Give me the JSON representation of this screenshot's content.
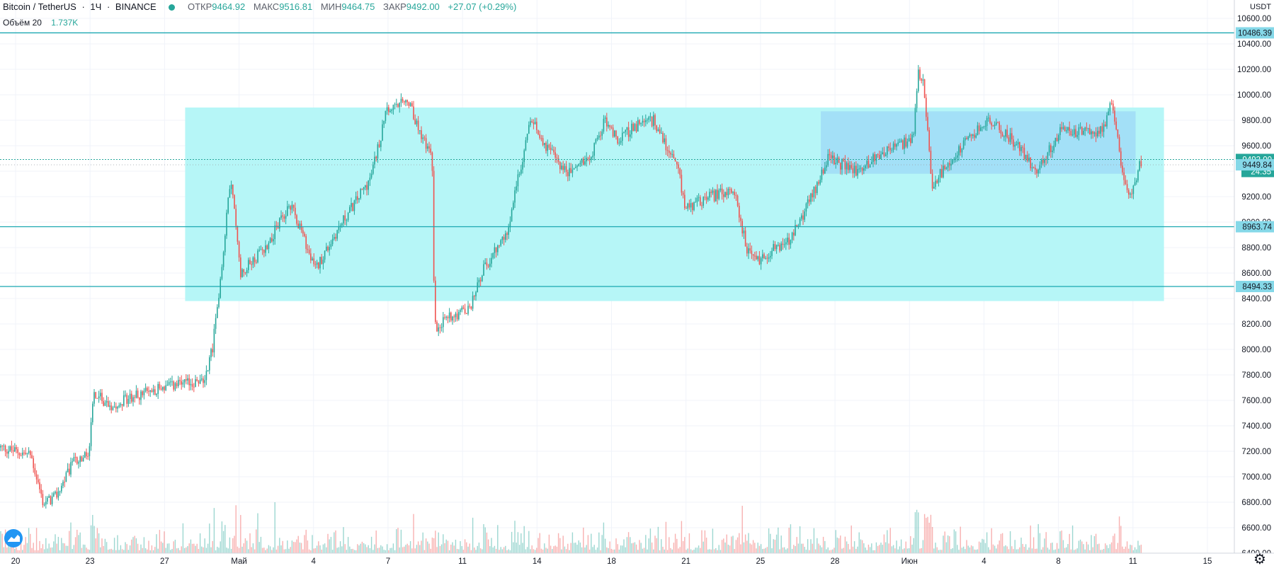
{
  "header": {
    "symbol": "Bitcoin / TetherUS",
    "interval": "1Ч",
    "exchange": "BINANCE",
    "ohlc": {
      "open_label": "ОТКР",
      "open": "9464.92",
      "high_label": "МАКС",
      "high": "9516.81",
      "low_label": "МИН",
      "low": "9464.75",
      "close_label": "ЗАКР",
      "close": "9492.00",
      "change": "+27.07 (+0.29%)"
    },
    "volume_label": "Объём 20",
    "volume_value": "1.737K"
  },
  "price_axis": {
    "currency": "USDT",
    "ticks": [
      "10600.00",
      "10400.00",
      "10200.00",
      "10000.00",
      "9800.00",
      "9600.00",
      "9400.00",
      "9200.00",
      "9000.00",
      "8800.00",
      "8600.00",
      "8400.00",
      "8200.00",
      "8000.00",
      "7800.00",
      "7600.00",
      "7400.00",
      "7200.00",
      "7000.00",
      "6800.00",
      "6600.00",
      "6400.00"
    ],
    "line_labels": [
      "10486.39",
      "8963.74",
      "8494.33"
    ],
    "current_price": "9492.00",
    "countdown": "24:35",
    "marker_price": "9449.84"
  },
  "time_axis": {
    "ticks": [
      "20",
      "23",
      "27",
      "Май",
      "4",
      "7",
      "11",
      "14",
      "18",
      "21",
      "25",
      "28",
      "Июн",
      "4",
      "8",
      "11",
      "15"
    ]
  },
  "colors": {
    "up": "#26a69a",
    "down": "#ef5350",
    "zone_large": "#b2f5f7",
    "zone_small": "#a0dcf7",
    "hline": "#1ba8b1",
    "logo": "#2196f3"
  },
  "icons": {
    "logo": "tradingview-logo-icon",
    "settings": "gear-icon"
  },
  "chart_data": {
    "type": "candlestick",
    "y_min": 6400,
    "y_max": 10700,
    "horizontal_lines": [
      10486.39,
      8963.74,
      8494.33
    ],
    "rectangles": [
      {
        "name": "range-zone",
        "x_start": 0.15,
        "x_end": 0.943,
        "y_low": 8380,
        "y_high": 9900
      },
      {
        "name": "sub-range-zone",
        "x_start": 0.665,
        "x_end": 0.92,
        "y_low": 9380,
        "y_high": 9870
      }
    ],
    "price_path": [
      [
        0.0,
        7230
      ],
      [
        0.025,
        7170
      ],
      [
        0.035,
        6790
      ],
      [
        0.045,
        6840
      ],
      [
        0.06,
        7120
      ],
      [
        0.072,
        7170
      ],
      [
        0.076,
        7650
      ],
      [
        0.09,
        7560
      ],
      [
        0.1,
        7600
      ],
      [
        0.13,
        7700
      ],
      [
        0.165,
        7750
      ],
      [
        0.172,
        8000
      ],
      [
        0.178,
        8500
      ],
      [
        0.187,
        9360
      ],
      [
        0.195,
        8600
      ],
      [
        0.215,
        8800
      ],
      [
        0.236,
        9150
      ],
      [
        0.255,
        8620
      ],
      [
        0.276,
        8980
      ],
      [
        0.3,
        9340
      ],
      [
        0.313,
        9860
      ],
      [
        0.33,
        9950
      ],
      [
        0.35,
        9500
      ],
      [
        0.352,
        8170
      ],
      [
        0.365,
        8270
      ],
      [
        0.38,
        8300
      ],
      [
        0.39,
        8600
      ],
      [
        0.41,
        8900
      ],
      [
        0.42,
        9350
      ],
      [
        0.43,
        9800
      ],
      [
        0.445,
        9560
      ],
      [
        0.46,
        9380
      ],
      [
        0.48,
        9550
      ],
      [
        0.49,
        9800
      ],
      [
        0.5,
        9650
      ],
      [
        0.515,
        9750
      ],
      [
        0.53,
        9800
      ],
      [
        0.55,
        9380
      ],
      [
        0.555,
        9100
      ],
      [
        0.575,
        9200
      ],
      [
        0.595,
        9250
      ],
      [
        0.605,
        8780
      ],
      [
        0.615,
        8700
      ],
      [
        0.628,
        8800
      ],
      [
        0.64,
        8850
      ],
      [
        0.66,
        9250
      ],
      [
        0.67,
        9500
      ],
      [
        0.695,
        9400
      ],
      [
        0.715,
        9550
      ],
      [
        0.74,
        9650
      ],
      [
        0.744,
        10200
      ],
      [
        0.748,
        10100
      ],
      [
        0.755,
        9300
      ],
      [
        0.78,
        9600
      ],
      [
        0.8,
        9800
      ],
      [
        0.82,
        9650
      ],
      [
        0.84,
        9400
      ],
      [
        0.86,
        9720
      ],
      [
        0.88,
        9700
      ],
      [
        0.895,
        9730
      ],
      [
        0.9,
        9920
      ],
      [
        0.905,
        9700
      ],
      [
        0.91,
        9300
      ],
      [
        0.915,
        9200
      ],
      [
        0.925,
        9490
      ]
    ]
  }
}
